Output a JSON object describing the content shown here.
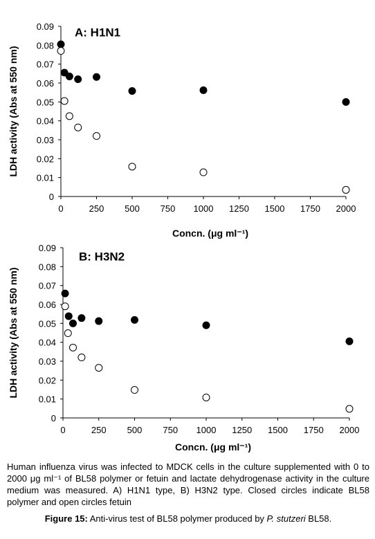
{
  "chart_data": [
    {
      "type": "scatter",
      "title": "A: H1N1",
      "xlabel": "Concn. (μg ml⁻¹)",
      "ylabel": "LDH activity (Abs at 550 nm)",
      "xlim": [
        0,
        2000
      ],
      "ylim": [
        0,
        0.09
      ],
      "xticks": [
        "0",
        "250",
        "500",
        "750",
        "1000",
        "1250",
        "1500",
        "1750",
        "2000"
      ],
      "yticks": [
        "0",
        "0.01",
        "0.02",
        "0.03",
        "0.04",
        "0.05",
        "0.06",
        "0.07",
        "0.08",
        "0.09"
      ],
      "series": [
        {
          "marker": "closed",
          "x": [
            0,
            25,
            60,
            120,
            250,
            500,
            1000,
            2000
          ],
          "y": [
            0.0805,
            0.0655,
            0.0635,
            0.062,
            0.0632,
            0.0558,
            0.0562,
            0.05
          ]
        },
        {
          "marker": "open",
          "x": [
            0,
            25,
            60,
            120,
            250,
            500,
            1000,
            2000
          ],
          "y": [
            0.077,
            0.0505,
            0.0425,
            0.0365,
            0.032,
            0.0158,
            0.0128,
            0.0035
          ]
        }
      ]
    },
    {
      "type": "scatter",
      "title": "B: H3N2",
      "xlabel": "Concn. (μg ml⁻¹)",
      "ylabel": "LDH activity (Abs at 550 nm)",
      "xlim": [
        0,
        2000
      ],
      "ylim": [
        0,
        0.09
      ],
      "xticks": [
        "0",
        "250",
        "500",
        "750",
        "1000",
        "1250",
        "1500",
        "1750",
        "2000"
      ],
      "yticks": [
        "0",
        "0.01",
        "0.02",
        "0.03",
        "0.04",
        "0.05",
        "0.06",
        "0.07",
        "0.08",
        "0.09"
      ],
      "series": [
        {
          "marker": "closed",
          "x": [
            15,
            40,
            70,
            130,
            250,
            500,
            1000,
            2000
          ],
          "y": [
            0.0658,
            0.0538,
            0.05,
            0.0528,
            0.0512,
            0.0518,
            0.049,
            0.0405
          ]
        },
        {
          "marker": "open",
          "x": [
            15,
            35,
            70,
            130,
            250,
            500,
            1000,
            2000
          ],
          "y": [
            0.059,
            0.0448,
            0.0372,
            0.032,
            0.0265,
            0.0148,
            0.0108,
            0.0048
          ]
        }
      ]
    }
  ],
  "caption": "Human influenza virus was infected to MDCK cells in the culture supplemented with 0 to 2000 μg ml⁻¹ of BL58 polymer or fetuin and lactate dehydrogenase activity in the culture medium was measured. A) H1N1 type, B) H3N2 type. Closed circles indicate BL58 polymer and open circles fetuin",
  "figure": {
    "label": "Figure 15:",
    "text": " Anti-virus test of BL58 polymer produced by ",
    "species": "P. stutzeri",
    "suffix": " BL58."
  }
}
